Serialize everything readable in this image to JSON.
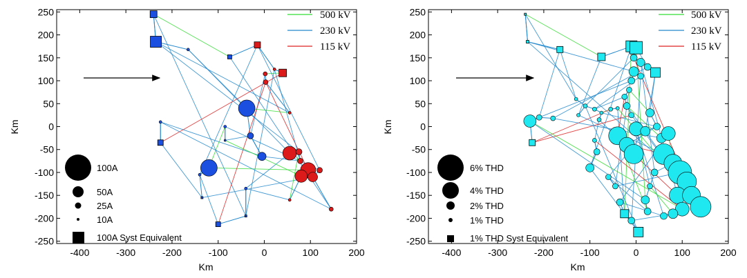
{
  "chart_data": [
    {
      "type": "scatter",
      "xlabel": "Km",
      "ylabel": "Km",
      "xlim": [
        -450,
        200
      ],
      "ylim": [
        -255,
        255
      ],
      "x_ticks": [
        -400,
        -300,
        -200,
        -100,
        0,
        100,
        200
      ],
      "y_ticks": [
        250,
        200,
        150,
        100,
        50,
        0,
        -50,
        -100,
        -150,
        -200,
        -250
      ],
      "line_legend": [
        {
          "label": "500 kV",
          "color": "#33dd33"
        },
        {
          "label": "230 kV",
          "color": "#2288cc"
        },
        {
          "label": "115 kV",
          "color": "#dd2222"
        }
      ],
      "size_legend": [
        {
          "label": "100A",
          "shape": "circle",
          "size_pct": 100
        },
        {
          "label": "50A",
          "shape": "circle",
          "size_pct": 50
        },
        {
          "label": "25A",
          "shape": "circle",
          "size_pct": 25
        },
        {
          "label": "10A",
          "shape": "circle",
          "size_pct": 10
        },
        {
          "label": "100A Syst Equivalent",
          "shape": "square",
          "size_pct": 100
        }
      ],
      "marker_color_mixed": [
        "#1a4fe0",
        "#dd1a1a"
      ],
      "buses": [
        {
          "x": -240,
          "y": 245,
          "size": 10,
          "shape": "square",
          "color": "blue"
        },
        {
          "x": -235,
          "y": 185,
          "size": 16,
          "shape": "square",
          "color": "blue"
        },
        {
          "x": -165,
          "y": 168,
          "size": 4,
          "shape": "circle",
          "color": "blue"
        },
        {
          "x": -75,
          "y": 152,
          "size": 6,
          "shape": "square",
          "color": "blue"
        },
        {
          "x": -15,
          "y": 178,
          "size": 9,
          "shape": "square",
          "color": "red"
        },
        {
          "x": 40,
          "y": 117,
          "size": 11,
          "shape": "square",
          "color": "red"
        },
        {
          "x": 2,
          "y": 115,
          "size": 6,
          "shape": "circle",
          "color": "red"
        },
        {
          "x": 3,
          "y": 97,
          "size": 7,
          "shape": "circle",
          "color": "red"
        },
        {
          "x": 22,
          "y": 125,
          "size": 4,
          "shape": "circle",
          "color": "red"
        },
        {
          "x": -38,
          "y": 40,
          "size": 24,
          "shape": "circle",
          "color": "blue"
        },
        {
          "x": 55,
          "y": 30,
          "size": 4,
          "shape": "circle",
          "color": "red"
        },
        {
          "x": -225,
          "y": 10,
          "size": 4,
          "shape": "circle",
          "color": "blue"
        },
        {
          "x": -85,
          "y": 0,
          "size": 4,
          "shape": "circle",
          "color": "blue"
        },
        {
          "x": -30,
          "y": -20,
          "size": 9,
          "shape": "circle",
          "color": "blue"
        },
        {
          "x": -225,
          "y": -35,
          "size": 8,
          "shape": "square",
          "color": "blue"
        },
        {
          "x": -120,
          "y": -90,
          "size": 24,
          "shape": "circle",
          "color": "blue"
        },
        {
          "x": -5,
          "y": -65,
          "size": 12,
          "shape": "circle",
          "color": "blue"
        },
        {
          "x": 55,
          "y": -58,
          "size": 20,
          "shape": "circle",
          "color": "red"
        },
        {
          "x": 75,
          "y": -55,
          "size": 9,
          "shape": "circle",
          "color": "red"
        },
        {
          "x": 78,
          "y": -75,
          "size": 8,
          "shape": "circle",
          "color": "red"
        },
        {
          "x": 95,
          "y": -95,
          "size": 22,
          "shape": "circle",
          "color": "red"
        },
        {
          "x": 80,
          "y": -108,
          "size": 18,
          "shape": "circle",
          "color": "red"
        },
        {
          "x": 105,
          "y": -110,
          "size": 14,
          "shape": "circle",
          "color": "red"
        },
        {
          "x": 120,
          "y": -95,
          "size": 8,
          "shape": "circle",
          "color": "red"
        },
        {
          "x": 145,
          "y": -180,
          "size": 6,
          "shape": "circle",
          "color": "red"
        },
        {
          "x": 55,
          "y": -160,
          "size": 4,
          "shape": "circle",
          "color": "red"
        },
        {
          "x": -40,
          "y": -135,
          "size": 4,
          "shape": "circle",
          "color": "blue"
        },
        {
          "x": -40,
          "y": -195,
          "size": 3,
          "shape": "square",
          "color": "blue"
        },
        {
          "x": -100,
          "y": -213,
          "size": 7,
          "shape": "square",
          "color": "blue"
        },
        {
          "x": -135,
          "y": -155,
          "size": 3,
          "shape": "square",
          "color": "blue"
        },
        {
          "x": -85,
          "y": -30,
          "size": 3,
          "shape": "circle",
          "color": "blue"
        },
        {
          "x": -140,
          "y": -105,
          "size": 4,
          "shape": "circle",
          "color": "blue"
        }
      ]
    },
    {
      "type": "scatter",
      "xlabel": "Km",
      "ylabel": "Km",
      "xlim": [
        -450,
        200
      ],
      "ylim": [
        -255,
        255
      ],
      "x_ticks": [
        -400,
        -300,
        -200,
        -100,
        0,
        100,
        200
      ],
      "y_ticks": [
        250,
        200,
        150,
        100,
        50,
        0,
        -50,
        -100,
        -150,
        -200,
        -250
      ],
      "line_legend": [
        {
          "label": "500 kV",
          "color": "#33dd33"
        },
        {
          "label": "230 kV",
          "color": "#2288cc"
        },
        {
          "label": "115 kV",
          "color": "#dd2222"
        }
      ],
      "size_legend": [
        {
          "label": "6% THD",
          "shape": "circle",
          "size_pct": 100
        },
        {
          "label": "4% THD",
          "shape": "circle",
          "size_pct": 67
        },
        {
          "label": "2% THD",
          "shape": "circle",
          "size_pct": 33
        },
        {
          "label": "1% THD",
          "shape": "circle",
          "size_pct": 17
        },
        {
          "label": "1% THD Syst Equivalent",
          "shape": "square",
          "size_pct": 17
        }
      ],
      "marker_color": "#1fe8f0",
      "buses": [
        {
          "x": -240,
          "y": 245,
          "size": 3,
          "shape": "square"
        },
        {
          "x": -235,
          "y": 185,
          "size": 4,
          "shape": "square"
        },
        {
          "x": -165,
          "y": 168,
          "size": 9,
          "shape": "square"
        },
        {
          "x": -75,
          "y": 152,
          "size": 11,
          "shape": "square"
        },
        {
          "x": -10,
          "y": 175,
          "size": 16,
          "shape": "square"
        },
        {
          "x": 0,
          "y": 172,
          "size": 18,
          "shape": "square"
        },
        {
          "x": 42,
          "y": 118,
          "size": 14,
          "shape": "square"
        },
        {
          "x": -5,
          "y": 150,
          "size": 10,
          "shape": "circle"
        },
        {
          "x": 10,
          "y": 140,
          "size": 12,
          "shape": "circle"
        },
        {
          "x": 25,
          "y": 130,
          "size": 10,
          "shape": "circle"
        },
        {
          "x": -5,
          "y": 120,
          "size": 14,
          "shape": "circle"
        },
        {
          "x": 10,
          "y": 110,
          "size": 9,
          "shape": "circle"
        },
        {
          "x": -10,
          "y": 100,
          "size": 10,
          "shape": "circle"
        },
        {
          "x": -15,
          "y": 80,
          "size": 8,
          "shape": "circle"
        },
        {
          "x": -25,
          "y": 65,
          "size": 8,
          "shape": "circle"
        },
        {
          "x": -20,
          "y": 45,
          "size": 10,
          "shape": "circle"
        },
        {
          "x": -10,
          "y": 25,
          "size": 8,
          "shape": "circle"
        },
        {
          "x": -130,
          "y": 60,
          "size": 5,
          "shape": "circle"
        },
        {
          "x": -110,
          "y": 45,
          "size": 6,
          "shape": "circle"
        },
        {
          "x": -90,
          "y": 38,
          "size": 6,
          "shape": "circle"
        },
        {
          "x": -75,
          "y": 30,
          "size": 5,
          "shape": "circle"
        },
        {
          "x": -55,
          "y": 38,
          "size": 6,
          "shape": "circle"
        },
        {
          "x": -40,
          "y": 40,
          "size": 5,
          "shape": "circle"
        },
        {
          "x": -80,
          "y": 15,
          "size": 6,
          "shape": "circle"
        },
        {
          "x": -125,
          "y": 25,
          "size": 5,
          "shape": "circle"
        },
        {
          "x": -230,
          "y": 12,
          "size": 18,
          "shape": "circle"
        },
        {
          "x": -210,
          "y": 20,
          "size": 8,
          "shape": "circle"
        },
        {
          "x": -180,
          "y": 18,
          "size": 7,
          "shape": "circle"
        },
        {
          "x": -225,
          "y": -35,
          "size": 9,
          "shape": "square"
        },
        {
          "x": -90,
          "y": -30,
          "size": 6,
          "shape": "circle"
        },
        {
          "x": -85,
          "y": -55,
          "size": 9,
          "shape": "circle"
        },
        {
          "x": -100,
          "y": -90,
          "size": 12,
          "shape": "circle"
        },
        {
          "x": -60,
          "y": -110,
          "size": 8,
          "shape": "circle"
        },
        {
          "x": -45,
          "y": -130,
          "size": 8,
          "shape": "circle"
        },
        {
          "x": -35,
          "y": -165,
          "size": 10,
          "shape": "circle"
        },
        {
          "x": -25,
          "y": -190,
          "size": 12,
          "shape": "square"
        },
        {
          "x": -10,
          "y": -205,
          "size": 10,
          "shape": "circle"
        },
        {
          "x": 5,
          "y": -230,
          "size": 14,
          "shape": "square"
        },
        {
          "x": 20,
          "y": -160,
          "size": 12,
          "shape": "circle"
        },
        {
          "x": 25,
          "y": -185,
          "size": 10,
          "shape": "circle"
        },
        {
          "x": -40,
          "y": -20,
          "size": 26,
          "shape": "circle"
        },
        {
          "x": -20,
          "y": -40,
          "size": 22,
          "shape": "circle"
        },
        {
          "x": -5,
          "y": -60,
          "size": 28,
          "shape": "circle"
        },
        {
          "x": 0,
          "y": -5,
          "size": 20,
          "shape": "circle"
        },
        {
          "x": 20,
          "y": -10,
          "size": 14,
          "shape": "circle"
        },
        {
          "x": 30,
          "y": 30,
          "size": 12,
          "shape": "circle"
        },
        {
          "x": 45,
          "y": 0,
          "size": 10,
          "shape": "circle"
        },
        {
          "x": 55,
          "y": -25,
          "size": 14,
          "shape": "circle"
        },
        {
          "x": 70,
          "y": -15,
          "size": 20,
          "shape": "circle"
        },
        {
          "x": 60,
          "y": -60,
          "size": 30,
          "shape": "circle"
        },
        {
          "x": 80,
          "y": -80,
          "size": 26,
          "shape": "circle"
        },
        {
          "x": 95,
          "y": -100,
          "size": 34,
          "shape": "circle"
        },
        {
          "x": 110,
          "y": -120,
          "size": 28,
          "shape": "circle"
        },
        {
          "x": 90,
          "y": -150,
          "size": 24,
          "shape": "circle"
        },
        {
          "x": 120,
          "y": -150,
          "size": 26,
          "shape": "circle"
        },
        {
          "x": 140,
          "y": -175,
          "size": 30,
          "shape": "circle"
        },
        {
          "x": 100,
          "y": -180,
          "size": 20,
          "shape": "circle"
        },
        {
          "x": 80,
          "y": -190,
          "size": 14,
          "shape": "circle"
        },
        {
          "x": 60,
          "y": -195,
          "size": 10,
          "shape": "circle"
        },
        {
          "x": 40,
          "y": -100,
          "size": 10,
          "shape": "circle"
        },
        {
          "x": 30,
          "y": -130,
          "size": 8,
          "shape": "circle"
        }
      ]
    }
  ]
}
